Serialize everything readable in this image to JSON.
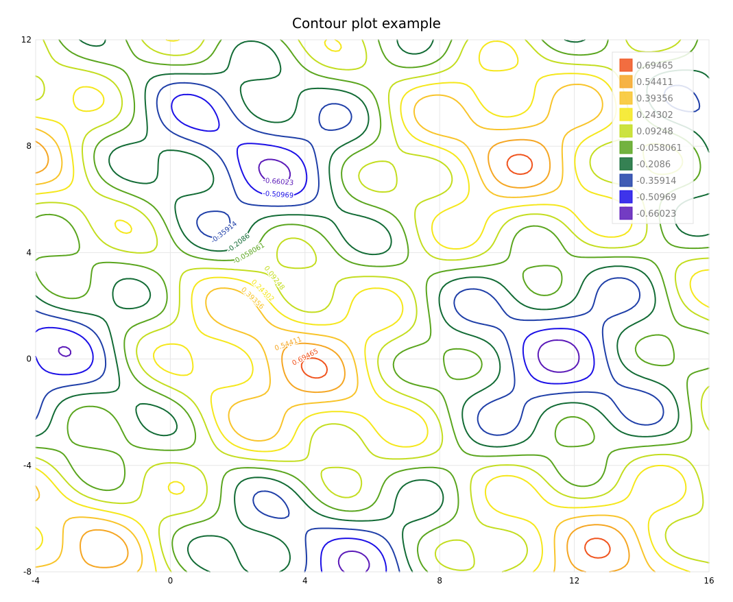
{
  "chart_data": {
    "type": "contour",
    "title": "Contour plot example",
    "xlabel": "",
    "ylabel": "",
    "xlim": [
      -4,
      16
    ],
    "ylim": [
      -8,
      12
    ],
    "xticks": [
      -4,
      0,
      4,
      8,
      12,
      16
    ],
    "yticks": [
      -8,
      -4,
      0,
      4,
      8,
      12
    ],
    "grid": true,
    "legend_position": "top-right",
    "levels": [
      {
        "label": "0.69465",
        "value": 0.69465,
        "color": "#f0541e"
      },
      {
        "label": "0.54411",
        "value": 0.54411,
        "color": "#f5a623"
      },
      {
        "label": "0.39356",
        "value": 0.39356,
        "color": "#f8c42a"
      },
      {
        "label": "0.24302",
        "value": 0.24302,
        "color": "#f5e71b"
      },
      {
        "label": "0.09248",
        "value": 0.09248,
        "color": "#c3dd1f"
      },
      {
        "label": "-0.058061",
        "value": -0.058061,
        "color": "#5aa51e"
      },
      {
        "label": "-0.2086",
        "value": -0.2086,
        "color": "#126b35"
      },
      {
        "label": "-0.35914",
        "value": -0.35914,
        "color": "#1f3fa8"
      },
      {
        "label": "-0.50969",
        "value": -0.50969,
        "color": "#1c10e6"
      },
      {
        "label": "-0.66023",
        "value": -0.66023,
        "color": "#5b1ab8"
      }
    ]
  }
}
